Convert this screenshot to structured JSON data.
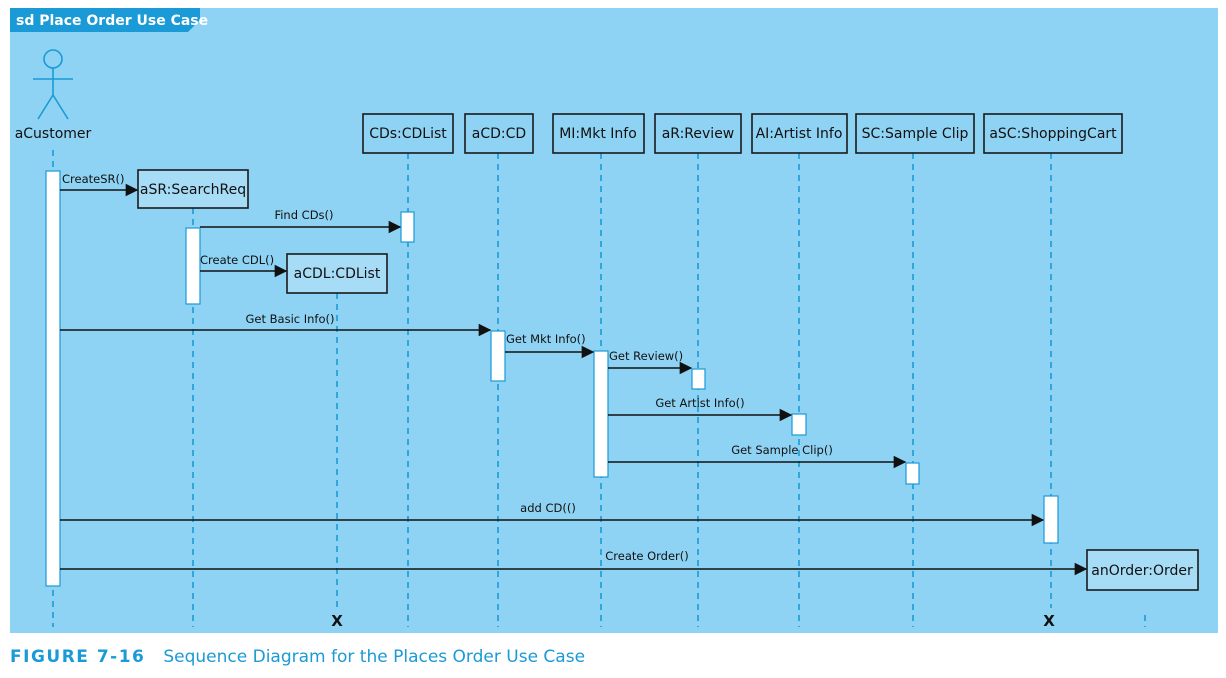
{
  "frame": {
    "label": "sd Place Order Use Case",
    "background": "#8fd3f4",
    "accent": "#1a9ad6"
  },
  "actor": {
    "name": "aCustomer",
    "icon": "stick-figure-actor-icon"
  },
  "objects": [
    {
      "id": "searchreq",
      "name": "aSR:SearchReq"
    },
    {
      "id": "acdl",
      "name": "aCDL:CDList"
    },
    {
      "id": "cds",
      "name": "CDs:CDList"
    },
    {
      "id": "acd",
      "name": "aCD:CD"
    },
    {
      "id": "mi",
      "name": "MI:Mkt Info"
    },
    {
      "id": "ar",
      "name": "aR:Review"
    },
    {
      "id": "ai",
      "name": "AI:Artist Info"
    },
    {
      "id": "sc",
      "name": "SC:Sample Clip"
    },
    {
      "id": "asc",
      "name": "aSC:ShoppingCart"
    },
    {
      "id": "anorder",
      "name": "anOrder:Order"
    }
  ],
  "messages": [
    {
      "label": "CreateSR()",
      "from": "aCustomer",
      "to": "aSR:SearchReq"
    },
    {
      "label": "Find CDs()",
      "from": "aSR:SearchReq",
      "to": "CDs:CDList"
    },
    {
      "label": "Create CDL()",
      "from": "aSR:SearchReq",
      "to": "aCDL:CDList"
    },
    {
      "label": "Get Basic Info()",
      "from": "aCustomer",
      "to": "aCD:CD"
    },
    {
      "label": "Get Mkt Info()",
      "from": "aCD:CD",
      "to": "MI:Mkt Info"
    },
    {
      "label": "Get Review()",
      "from": "MI:Mkt Info",
      "to": "aR:Review"
    },
    {
      "label": "Get Artist Info()",
      "from": "MI:Mkt Info",
      "to": "AI:Artist Info"
    },
    {
      "label": "Get Sample Clip()",
      "from": "MI:Mkt Info",
      "to": "SC:Sample Clip"
    },
    {
      "label": "add CD(()",
      "from": "aCustomer",
      "to": "aSC:ShoppingCart"
    },
    {
      "label": "Create Order()",
      "from": "aCustomer",
      "to": "anOrder:Order"
    }
  ],
  "destroy_marker": "X",
  "caption": {
    "number": "FIGURE 7-16",
    "text": "Sequence Diagram for the Places Order Use Case"
  }
}
